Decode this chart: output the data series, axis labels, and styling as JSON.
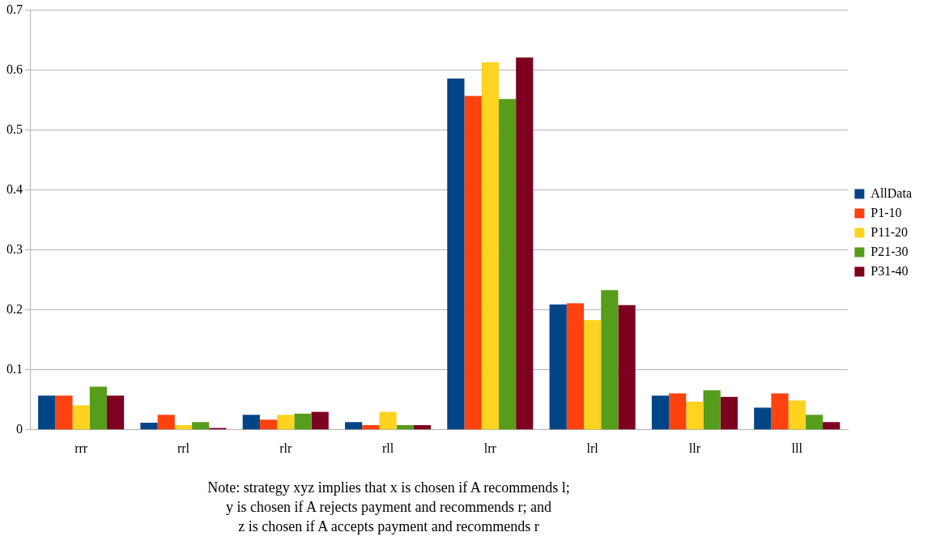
{
  "chart_data": {
    "type": "bar",
    "categories": [
      "rrr",
      "rrl",
      "rlr",
      "rll",
      "lrr",
      "lrl",
      "llr",
      "lll"
    ],
    "series": [
      {
        "name": "AllData",
        "color": "#004586",
        "values": [
          0.057,
          0.012,
          0.025,
          0.013,
          0.586,
          0.209,
          0.057,
          0.037
        ]
      },
      {
        "name": "P1-10",
        "color": "#ff420e",
        "values": [
          0.057,
          0.025,
          0.017,
          0.008,
          0.557,
          0.211,
          0.061,
          0.061
        ]
      },
      {
        "name": "P11-20",
        "color": "#ffd320",
        "values": [
          0.041,
          0.008,
          0.025,
          0.03,
          0.613,
          0.183,
          0.047,
          0.049
        ]
      },
      {
        "name": "P21-30",
        "color": "#579d1c",
        "values": [
          0.072,
          0.013,
          0.027,
          0.008,
          0.552,
          0.233,
          0.066,
          0.025
        ]
      },
      {
        "name": "P31-40",
        "color": "#7e0021",
        "values": [
          0.057,
          0.003,
          0.03,
          0.008,
          0.621,
          0.208,
          0.055,
          0.013
        ]
      }
    ],
    "ylim": [
      0,
      0.7
    ],
    "yticks": [
      0,
      0.1,
      0.2,
      0.3,
      0.4,
      0.5,
      0.6,
      0.7
    ],
    "grid": "y",
    "legend": "right",
    "annotations": [
      "Note: strategy xyz implies that x is chosen if A recommends l;",
      "y is chosen if A rejects payment and recommends r; and",
      "z is chosen if A accepts payment and recommends r"
    ]
  }
}
